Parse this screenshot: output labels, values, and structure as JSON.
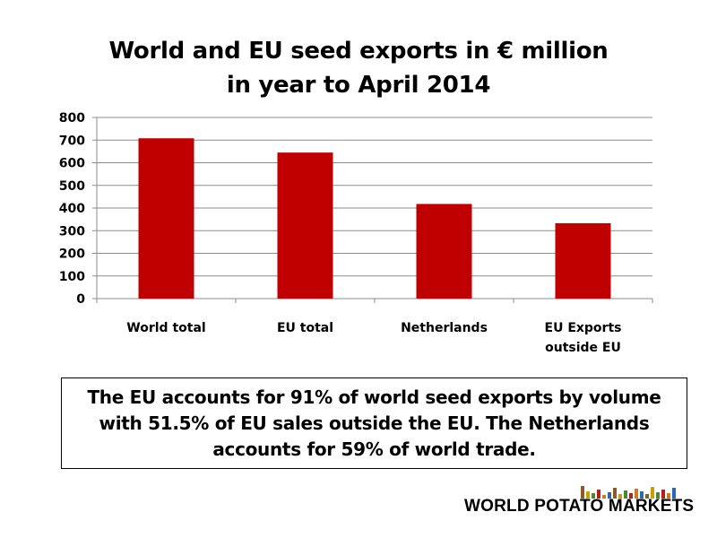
{
  "chart_data": {
    "type": "bar",
    "title": "World and EU seed exports in € million\nin year to April 2014",
    "categories": [
      "World total",
      "EU total",
      "Netherlands",
      "EU Exports\noutside EU"
    ],
    "values": [
      708,
      645,
      418,
      333
    ],
    "ylim": [
      0,
      800
    ],
    "yticks": [
      0,
      100,
      200,
      300,
      400,
      500,
      600,
      700,
      800
    ],
    "grid": true,
    "bar_color": "#c00000",
    "xlabel": "",
    "ylabel": ""
  },
  "note": "The EU accounts for 91% of world seed exports by volume with 51.5% of EU sales outside the EU. The Netherlands accounts for 59% of world trade.",
  "brand": {
    "name": "WORLD POTATO MARKETS",
    "logo_colors": [
      "#8b5a2b",
      "#c8a000",
      "#4a8a2a",
      "#b02020",
      "#d07a20",
      "#2a6aa8"
    ]
  }
}
